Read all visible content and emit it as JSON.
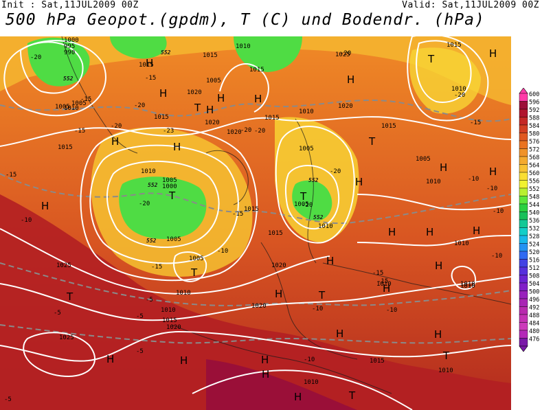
{
  "header": {
    "init": "Init : Sat,11JUL2009 00Z",
    "valid": "Valid: Sat,11JUL2009 00Z",
    "title": "500 hPa Geopot.(gpdm), T (C) und Bodendr. (hPa)"
  },
  "legend": {
    "levels": [
      "600",
      "596",
      "592",
      "588",
      "584",
      "580",
      "576",
      "572",
      "568",
      "564",
      "560",
      "556",
      "552",
      "548",
      "544",
      "540",
      "536",
      "532",
      "528",
      "524",
      "520",
      "516",
      "512",
      "508",
      "504",
      "500",
      "496",
      "492",
      "488",
      "484",
      "480",
      "476"
    ],
    "colors": [
      "#ff3aa8",
      "#9c0f3a",
      "#b0152e",
      "#c42826",
      "#d23e22",
      "#e05820",
      "#ea7422",
      "#f09228",
      "#f4aa2e",
      "#f8c232",
      "#fade34",
      "#f2f230",
      "#b8f030",
      "#5ce63a",
      "#2ad040",
      "#18c05a",
      "#12c896",
      "#12cec8",
      "#18b8ea",
      "#2492f2",
      "#306af2",
      "#4242e4",
      "#5630dc",
      "#6a24d2",
      "#8020c8",
      "#9822bc",
      "#a824b4",
      "#b82aae",
      "#c432b4",
      "#cc3aba",
      "#b428b8",
      "#7a18a8"
    ]
  },
  "map": {
    "pressure_labels": [
      {
        "id": "p1",
        "text": "1000"
      },
      {
        "id": "p2",
        "text": "995"
      },
      {
        "id": "p3",
        "text": "990"
      },
      {
        "id": "p4",
        "text": "1015"
      },
      {
        "id": "p5",
        "text": "1010"
      },
      {
        "id": "p6",
        "text": "1005"
      },
      {
        "id": "p7",
        "text": "1015"
      },
      {
        "id": "p8",
        "text": "1015"
      },
      {
        "id": "p9",
        "text": "1010"
      },
      {
        "id": "p10",
        "text": "1015"
      },
      {
        "id": "p11",
        "text": "1005"
      },
      {
        "id": "p12",
        "text": "1005"
      },
      {
        "id": "p13",
        "text": "1010"
      },
      {
        "id": "p14",
        "text": "1015"
      },
      {
        "id": "p15",
        "text": "1020"
      },
      {
        "id": "p16",
        "text": "1025"
      },
      {
        "id": "p17",
        "text": "1020"
      },
      {
        "id": "p18",
        "text": "1020"
      },
      {
        "id": "p19",
        "text": "1015"
      },
      {
        "id": "p20",
        "text": "1020"
      },
      {
        "id": "p21",
        "text": "1015"
      },
      {
        "id": "p22",
        "text": "1010"
      },
      {
        "id": "p23",
        "text": "1005"
      },
      {
        "id": "p24",
        "text": "1000"
      },
      {
        "id": "p25",
        "text": "1005"
      },
      {
        "id": "p26",
        "text": "1015"
      },
      {
        "id": "p27",
        "text": "1015"
      },
      {
        "id": "p28",
        "text": "1005"
      },
      {
        "id": "p29",
        "text": "1010"
      },
      {
        "id": "p30",
        "text": "1020"
      },
      {
        "id": "p31",
        "text": "1025"
      },
      {
        "id": "p32",
        "text": "1010"
      },
      {
        "id": "p33",
        "text": "1020"
      },
      {
        "id": "p34",
        "text": "1015"
      },
      {
        "id": "p35",
        "text": "1020"
      },
      {
        "id": "p36",
        "text": "1025"
      },
      {
        "id": "p37",
        "text": "1010"
      },
      {
        "id": "p38",
        "text": "1015"
      },
      {
        "id": "p39",
        "text": "1010"
      },
      {
        "id": "p40",
        "text": "1010"
      },
      {
        "id": "p41",
        "text": "1010"
      },
      {
        "id": "p42",
        "text": "1010"
      },
      {
        "id": "p43",
        "text": "1005"
      },
      {
        "id": "p44",
        "text": "1010"
      },
      {
        "id": "p45",
        "text": "1015"
      },
      {
        "id": "p46",
        "text": "1010"
      },
      {
        "id": "p47",
        "text": "1010"
      },
      {
        "id": "p48",
        "text": "1005"
      },
      {
        "id": "p49",
        "text": "1005"
      },
      {
        "id": "p50",
        "text": "1010"
      }
    ],
    "temp_labels": [
      {
        "id": "t1",
        "text": "-20"
      },
      {
        "id": "t2",
        "text": "-15"
      },
      {
        "id": "t3",
        "text": "-15"
      },
      {
        "id": "t4",
        "text": "-20"
      },
      {
        "id": "t5",
        "text": "-20"
      },
      {
        "id": "t6",
        "text": "-23"
      },
      {
        "id": "t7",
        "text": "-20"
      },
      {
        "id": "t8",
        "text": "-20"
      },
      {
        "id": "t9",
        "text": "-20"
      },
      {
        "id": "t10",
        "text": "-15"
      },
      {
        "id": "t11",
        "text": "-15"
      },
      {
        "id": "t12",
        "text": "-10"
      },
      {
        "id": "t13",
        "text": "-15"
      },
      {
        "id": "t14",
        "text": "-10"
      },
      {
        "id": "t15",
        "text": "-20"
      },
      {
        "id": "t16",
        "text": "-20"
      },
      {
        "id": "t17",
        "text": "-15"
      },
      {
        "id": "t18",
        "text": "-15"
      },
      {
        "id": "t19",
        "text": "-10"
      },
      {
        "id": "t20",
        "text": "-10"
      },
      {
        "id": "t21",
        "text": "-15"
      },
      {
        "id": "t22",
        "text": "-10"
      },
      {
        "id": "t23",
        "text": "-10"
      },
      {
        "id": "t24",
        "text": "-10"
      },
      {
        "id": "t25",
        "text": "-5"
      },
      {
        "id": "t26",
        "text": "-5"
      },
      {
        "id": "t27",
        "text": "-5"
      },
      {
        "id": "t28",
        "text": "-5"
      },
      {
        "id": "t29",
        "text": "-5"
      },
      {
        "id": "t30",
        "text": "-10"
      },
      {
        "id": "t31",
        "text": "-15"
      },
      {
        "id": "t32",
        "text": "-20"
      },
      {
        "id": "t33",
        "text": "-20"
      },
      {
        "id": "t34",
        "text": "-10"
      }
    ],
    "geo_labels": [
      {
        "id": "g1",
        "text": "552"
      },
      {
        "id": "g2",
        "text": "552"
      },
      {
        "id": "g3",
        "text": "552"
      },
      {
        "id": "g4",
        "text": "552"
      },
      {
        "id": "g5",
        "text": "552"
      },
      {
        "id": "g6",
        "text": "552"
      }
    ],
    "highs": 28,
    "lows": 8
  }
}
